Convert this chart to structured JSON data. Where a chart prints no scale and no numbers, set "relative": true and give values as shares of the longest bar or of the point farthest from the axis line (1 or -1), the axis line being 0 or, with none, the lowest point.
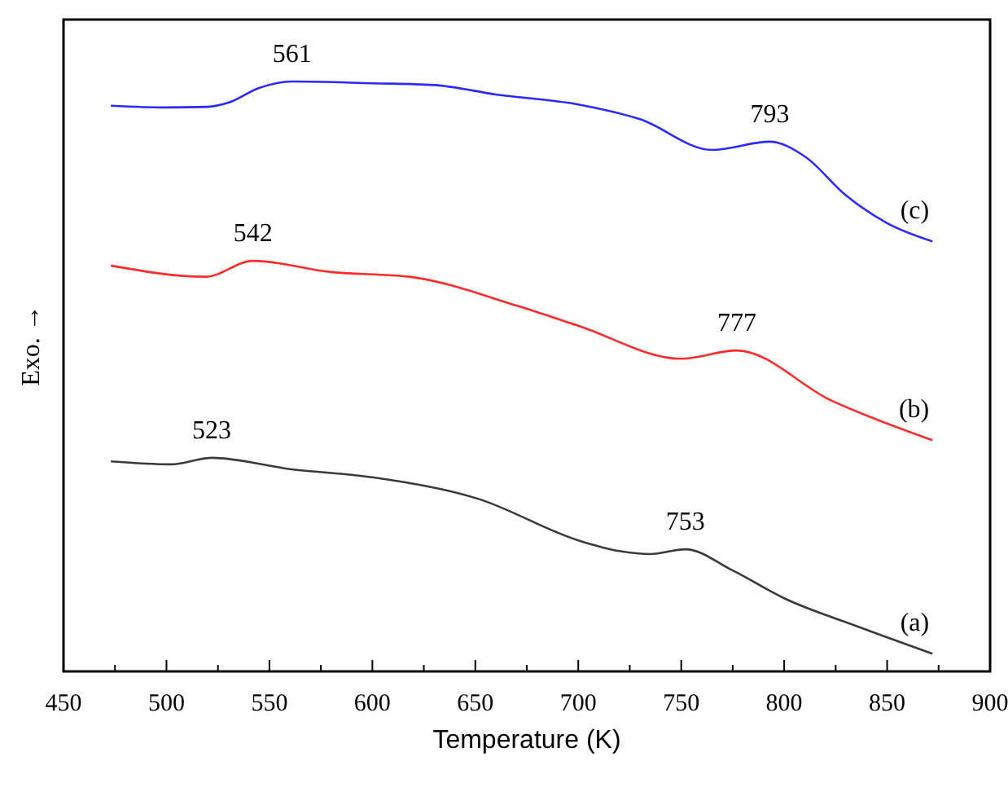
{
  "chart_data": {
    "type": "line",
    "relative": true,
    "xlabel": "Temperature (K)",
    "ylabel": "Exo. →",
    "tick_labels": "x",
    "grid": false,
    "marker": "none",
    "line_style": "solid",
    "xlim": [
      450,
      900
    ],
    "xticks": [
      450,
      {
        "value": 475,
        "label": null
      },
      500,
      {
        "value": 525,
        "label": null
      },
      550,
      {
        "value": 575,
        "label": null
      },
      600,
      {
        "value": 625,
        "label": null
      },
      650,
      {
        "value": 675,
        "label": null
      },
      700,
      {
        "value": 725,
        "label": null
      },
      750,
      {
        "value": 775,
        "label": null
      },
      800,
      {
        "value": 825,
        "label": null
      },
      850,
      {
        "value": 875,
        "label": null
      },
      900
    ],
    "series": [
      {
        "name": "(a)",
        "color": "#3a3a3a",
        "x": [
          473,
          502,
          522,
          560,
          600,
          651,
          701,
          720,
          735,
          752,
          775,
          800,
          835,
          872
        ],
        "values": [
          0.356,
          0.351,
          0.362,
          0.343,
          0.329,
          0.293,
          0.221,
          0.204,
          0.199,
          0.207,
          0.171,
          0.124,
          0.077,
          0.03
        ]
      },
      {
        "name": "(b)",
        "color": "#ff2a2a",
        "x": [
          473,
          519,
          542,
          580,
          618,
          671,
          700,
          750,
          777,
          823,
          872
        ],
        "values": [
          0.688,
          0.669,
          0.696,
          0.677,
          0.669,
          0.619,
          0.586,
          0.53,
          0.544,
          0.459,
          0.392
        ]
      },
      {
        "name": "(c)",
        "color": "#2a2aff",
        "x": [
          473,
          500,
          520,
          530,
          545,
          561,
          600,
          630,
          660,
          700,
          730,
          765,
          793,
          810,
          830,
          850,
          872
        ],
        "values": [
          0.959,
          0.956,
          0.957,
          0.964,
          0.989,
          1.0,
          0.997,
          0.994,
          0.978,
          0.961,
          0.936,
          0.884,
          0.898,
          0.873,
          0.807,
          0.76,
          0.729
        ]
      }
    ],
    "annotations": [
      {
        "text": "523",
        "x": 522,
        "y": 0.362
      },
      {
        "text": "753",
        "x": 752,
        "y": 0.207
      },
      {
        "text": "542",
        "x": 542,
        "y": 0.696
      },
      {
        "text": "777",
        "x": 777,
        "y": 0.544
      },
      {
        "text": "561",
        "x": 561,
        "y": 1.0
      },
      {
        "text": "793",
        "x": 793,
        "y": 0.898
      }
    ]
  }
}
